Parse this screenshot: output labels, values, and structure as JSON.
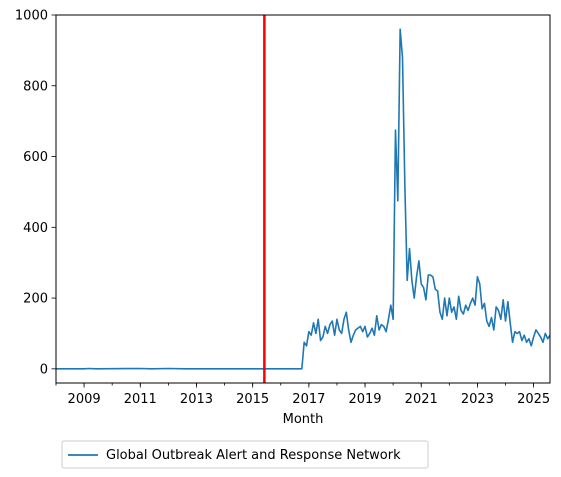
{
  "chart_data": {
    "type": "line",
    "title": "",
    "xlabel": "Month",
    "ylabel": "",
    "xlim": [
      "2008-01",
      "2025-08"
    ],
    "ylim": [
      -40,
      1000
    ],
    "x_ticks": [
      "2009",
      "2011",
      "2013",
      "2015",
      "2017",
      "2019",
      "2021",
      "2023",
      "2025"
    ],
    "y_ticks": [
      "0",
      "200",
      "400",
      "600",
      "800",
      "1000"
    ],
    "grid": false,
    "legend_position": "below-left",
    "vertical_marker": {
      "x": "2015-06",
      "color": "#ff0000"
    },
    "series": [
      {
        "name": "Global Outbreak Alert and Response Network",
        "color": "#1f77b4",
        "points": [
          [
            "2008-01",
            0
          ],
          [
            "2009-01",
            0
          ],
          [
            "2009-03",
            1
          ],
          [
            "2009-06",
            0
          ],
          [
            "2011-01",
            1
          ],
          [
            "2011-06",
            0
          ],
          [
            "2012-01",
            1
          ],
          [
            "2012-08",
            0
          ],
          [
            "2013-01",
            0
          ],
          [
            "2014-01",
            0
          ],
          [
            "2015-01",
            0
          ],
          [
            "2016-01",
            0
          ],
          [
            "2016-10",
            0
          ],
          [
            "2016-11",
            75
          ],
          [
            "2016-12",
            65
          ],
          [
            "2017-01",
            105
          ],
          [
            "2017-02",
            95
          ],
          [
            "2017-03",
            130
          ],
          [
            "2017-04",
            100
          ],
          [
            "2017-05",
            140
          ],
          [
            "2017-06",
            80
          ],
          [
            "2017-07",
            90
          ],
          [
            "2017-08",
            120
          ],
          [
            "2017-09",
            100
          ],
          [
            "2017-10",
            125
          ],
          [
            "2017-11",
            135
          ],
          [
            "2017-12",
            95
          ],
          [
            "2018-01",
            140
          ],
          [
            "2018-02",
            110
          ],
          [
            "2018-03",
            100
          ],
          [
            "2018-04",
            140
          ],
          [
            "2018-05",
            160
          ],
          [
            "2018-06",
            110
          ],
          [
            "2018-07",
            75
          ],
          [
            "2018-08",
            95
          ],
          [
            "2018-09",
            110
          ],
          [
            "2018-10",
            115
          ],
          [
            "2018-11",
            120
          ],
          [
            "2018-12",
            105
          ],
          [
            "2019-01",
            120
          ],
          [
            "2019-02",
            90
          ],
          [
            "2019-03",
            100
          ],
          [
            "2019-04",
            115
          ],
          [
            "2019-05",
            95
          ],
          [
            "2019-06",
            150
          ],
          [
            "2019-07",
            110
          ],
          [
            "2019-08",
            125
          ],
          [
            "2019-09",
            120
          ],
          [
            "2019-10",
            105
          ],
          [
            "2019-11",
            140
          ],
          [
            "2019-12",
            180
          ],
          [
            "2020-01",
            140
          ],
          [
            "2020-02",
            675
          ],
          [
            "2020-03",
            475
          ],
          [
            "2020-04",
            960
          ],
          [
            "2020-05",
            880
          ],
          [
            "2020-06",
            520
          ],
          [
            "2020-07",
            250
          ],
          [
            "2020-08",
            340
          ],
          [
            "2020-09",
            250
          ],
          [
            "2020-10",
            200
          ],
          [
            "2020-11",
            260
          ],
          [
            "2020-12",
            305
          ],
          [
            "2021-01",
            240
          ],
          [
            "2021-02",
            230
          ],
          [
            "2021-03",
            195
          ],
          [
            "2021-04",
            265
          ],
          [
            "2021-05",
            265
          ],
          [
            "2021-06",
            260
          ],
          [
            "2021-07",
            225
          ],
          [
            "2021-08",
            220
          ],
          [
            "2021-09",
            160
          ],
          [
            "2021-10",
            140
          ],
          [
            "2021-11",
            200
          ],
          [
            "2021-12",
            150
          ],
          [
            "2022-01",
            200
          ],
          [
            "2022-02",
            160
          ],
          [
            "2022-03",
            175
          ],
          [
            "2022-04",
            140
          ],
          [
            "2022-05",
            205
          ],
          [
            "2022-06",
            165
          ],
          [
            "2022-07",
            155
          ],
          [
            "2022-08",
            180
          ],
          [
            "2022-09",
            165
          ],
          [
            "2022-10",
            185
          ],
          [
            "2022-11",
            200
          ],
          [
            "2022-12",
            180
          ],
          [
            "2023-01",
            260
          ],
          [
            "2023-02",
            240
          ],
          [
            "2023-03",
            170
          ],
          [
            "2023-04",
            185
          ],
          [
            "2023-05",
            135
          ],
          [
            "2023-06",
            120
          ],
          [
            "2023-07",
            145
          ],
          [
            "2023-08",
            110
          ],
          [
            "2023-09",
            175
          ],
          [
            "2023-10",
            165
          ],
          [
            "2023-11",
            140
          ],
          [
            "2023-12",
            195
          ],
          [
            "2024-01",
            135
          ],
          [
            "2024-02",
            190
          ],
          [
            "2024-03",
            130
          ],
          [
            "2024-04",
            75
          ],
          [
            "2024-05",
            105
          ],
          [
            "2024-06",
            100
          ],
          [
            "2024-07",
            105
          ],
          [
            "2024-08",
            80
          ],
          [
            "2024-09",
            95
          ],
          [
            "2024-10",
            75
          ],
          [
            "2024-11",
            85
          ],
          [
            "2024-12",
            65
          ],
          [
            "2025-01",
            90
          ],
          [
            "2025-02",
            110
          ],
          [
            "2025-03",
            100
          ],
          [
            "2025-04",
            90
          ],
          [
            "2025-05",
            75
          ],
          [
            "2025-06",
            100
          ],
          [
            "2025-07",
            85
          ],
          [
            "2025-08",
            95
          ]
        ]
      }
    ]
  }
}
